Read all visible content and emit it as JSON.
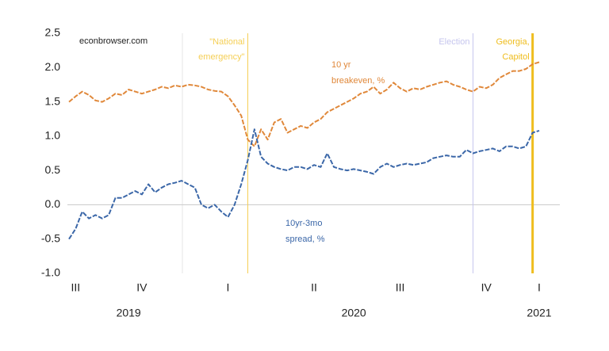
{
  "chart_data": {
    "type": "line",
    "ylim": [
      -1,
      2.5
    ],
    "yticks": [
      {
        "value": -1,
        "label": "-1.0"
      },
      -0.5,
      {
        "value": 0,
        "label": "0.0"
      },
      0.5,
      {
        "value": 1,
        "label": "1.0"
      },
      1.5,
      {
        "value": 2,
        "label": "2.0"
      },
      2.5
    ],
    "zero_line": true,
    "source": "econbrowser.com",
    "categories": [
      null,
      "III",
      null,
      null,
      null,
      null,
      null,
      null,
      null,
      null,
      null,
      "IV",
      null,
      null,
      null,
      null,
      null,
      null,
      null,
      null,
      null,
      null,
      null,
      null,
      "I",
      null,
      null,
      null,
      null,
      null,
      null,
      null,
      null,
      null,
      null,
      null,
      null,
      "II",
      null,
      null,
      null,
      null,
      null,
      null,
      null,
      null,
      null,
      null,
      null,
      null,
      "III",
      null,
      null,
      null,
      null,
      null,
      null,
      null,
      null,
      null,
      null,
      null,
      null,
      "IV",
      null,
      null,
      null,
      null,
      null,
      null,
      null,
      "I"
    ],
    "year_labels": [
      null,
      null,
      null,
      null,
      null,
      null,
      null,
      null,
      null,
      "2019",
      null,
      null,
      null,
      null,
      null,
      null,
      null,
      null,
      null,
      null,
      null,
      null,
      null,
      null,
      null,
      null,
      null,
      null,
      null,
      null,
      null,
      null,
      null,
      null,
      null,
      null,
      null,
      null,
      null,
      null,
      null,
      null,
      null,
      "2020",
      null,
      null,
      null,
      null,
      null,
      null,
      null,
      null,
      null,
      null,
      null,
      null,
      null,
      null,
      null,
      null,
      null,
      null,
      null,
      null,
      null,
      null,
      null,
      null,
      null,
      null,
      null,
      "2021"
    ],
    "events": [
      {
        "at": 27,
        "label": [
          "\"National",
          "emergency\""
        ],
        "color": "#f5cf55"
      },
      {
        "at": 61,
        "label": [
          "Election"
        ],
        "color": "#c6c6ee"
      },
      {
        "at": 70,
        "label": [
          "Georgia,",
          "Capitol"
        ],
        "color": "#efbd1e"
      }
    ],
    "series": [
      {
        "label": [
          "10 yr",
          "breakeven, %"
        ],
        "color": "#e0883a",
        "values": [
          1.5,
          1.58,
          1.65,
          1.6,
          1.52,
          1.5,
          1.55,
          1.62,
          1.6,
          1.68,
          1.65,
          1.62,
          1.65,
          1.68,
          1.72,
          1.7,
          1.74,
          1.72,
          1.75,
          1.74,
          1.72,
          1.68,
          1.66,
          1.65,
          1.58,
          1.45,
          1.3,
          0.95,
          0.85,
          1.1,
          0.95,
          1.2,
          1.25,
          1.05,
          1.1,
          1.15,
          1.12,
          1.2,
          1.25,
          1.35,
          1.4,
          1.45,
          1.5,
          1.55,
          1.62,
          1.65,
          1.72,
          1.62,
          1.68,
          1.78,
          1.7,
          1.65,
          1.7,
          1.68,
          1.72,
          1.75,
          1.78,
          1.8,
          1.75,
          1.72,
          1.68,
          1.65,
          1.72,
          1.7,
          1.75,
          1.85,
          1.9,
          1.95,
          1.95,
          1.98,
          2.05,
          2.08
        ]
      },
      {
        "label": [
          "10yr-3mo",
          "spread, %"
        ],
        "color": "#3b67a8",
        "values": [
          -0.5,
          -0.35,
          -0.1,
          -0.2,
          -0.15,
          -0.2,
          -0.15,
          0.1,
          0.1,
          0.15,
          0.2,
          0.15,
          0.3,
          0.18,
          0.25,
          0.3,
          0.32,
          0.35,
          0.3,
          0.25,
          0.0,
          -0.05,
          0.0,
          -0.1,
          -0.18,
          0.0,
          0.3,
          0.65,
          1.1,
          0.7,
          0.6,
          0.55,
          0.52,
          0.5,
          0.55,
          0.55,
          0.52,
          0.58,
          0.55,
          0.75,
          0.55,
          0.52,
          0.5,
          0.52,
          0.5,
          0.48,
          0.45,
          0.55,
          0.6,
          0.55,
          0.58,
          0.6,
          0.58,
          0.6,
          0.62,
          0.68,
          0.7,
          0.72,
          0.7,
          0.7,
          0.8,
          0.75,
          0.78,
          0.8,
          0.82,
          0.78,
          0.85,
          0.85,
          0.82,
          0.85,
          1.05,
          1.08
        ]
      }
    ]
  }
}
